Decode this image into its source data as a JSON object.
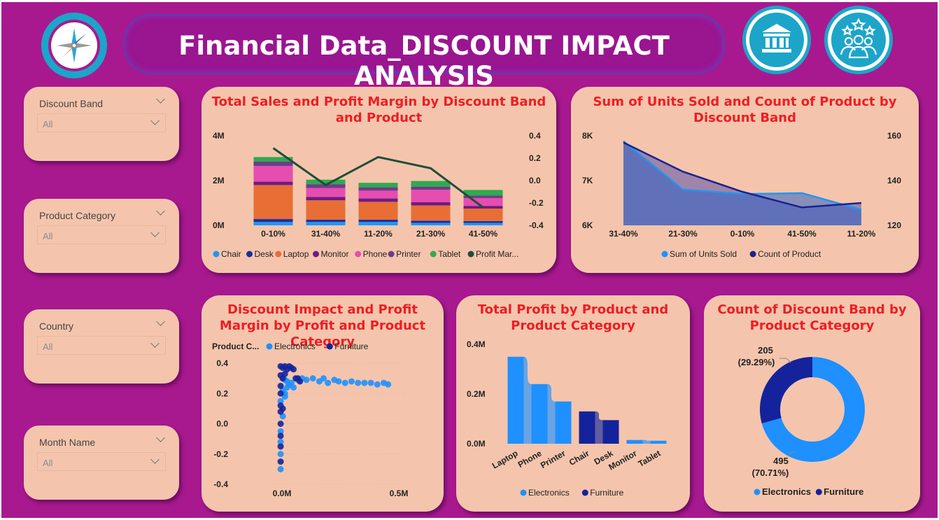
{
  "title": "Financial Data_DISCOUNT IMPACT ANALYSIS",
  "icons": {
    "logo": "compass-icon",
    "bank": "bank-icon",
    "team": "team-stars-icon"
  },
  "slicers": [
    {
      "label": "Discount Band",
      "value": "All"
    },
    {
      "label": "Product Category",
      "value": "All"
    },
    {
      "label": "Country",
      "value": "All"
    },
    {
      "label": "Month Name",
      "value": "All"
    }
  ],
  "colors": {
    "background": "#a8198f",
    "card": "#f4c5ac",
    "title_red": "#ee1d24",
    "chair": "#2196f3",
    "desk": "#1a2fa0",
    "laptop": "#e86e35",
    "monitor": "#6e1c7f",
    "phone": "#e64db0",
    "printer": "#6f3c8a",
    "tablet": "#2eab4f",
    "profit_margin": "#1d4e3a",
    "electronics": "#1e90ff",
    "furniture": "#14239c"
  },
  "chart_data": [
    {
      "type": "bar",
      "title": "Total Sales and Profit Margin by Discount Band and Product",
      "stacked": true,
      "categories": [
        "0-10%",
        "31-40%",
        "11-20%",
        "21-30%",
        "41-50%"
      ],
      "ylim": [
        0,
        4000000
      ],
      "y_ticks": [
        "0M",
        "2M",
        "4M"
      ],
      "y2lim": [
        -0.4,
        0.4
      ],
      "y2_ticks": [
        "-0.4",
        "-0.2",
        "0.0",
        "0.2",
        "0.4"
      ],
      "series": [
        {
          "name": "Chair",
          "values": [
            150000,
            150000,
            150000,
            110000,
            110000
          ]
        },
        {
          "name": "Desk",
          "values": [
            130000,
            100000,
            100000,
            100000,
            80000
          ]
        },
        {
          "name": "Laptop",
          "values": [
            1520000,
            870000,
            800000,
            680000,
            560000
          ]
        },
        {
          "name": "Monitor",
          "values": [
            150000,
            150000,
            150000,
            150000,
            120000
          ]
        },
        {
          "name": "Phone",
          "values": [
            700000,
            400000,
            350000,
            550000,
            350000
          ]
        },
        {
          "name": "Printer",
          "values": [
            200000,
            170000,
            150000,
            140000,
            110000
          ]
        },
        {
          "name": "Tablet",
          "values": [
            200000,
            200000,
            200000,
            250000,
            250000
          ]
        },
        {
          "name": "Profit Mar...",
          "axis": "secondary",
          "values": [
            0.29,
            -0.04,
            0.21,
            0.11,
            -0.24
          ]
        }
      ],
      "legend": [
        "Chair",
        "Desk",
        "Laptop",
        "Monitor",
        "Phone",
        "Printer",
        "Tablet",
        "Profit Mar..."
      ]
    },
    {
      "type": "area",
      "title": "Sum of Units Sold and Count of Product by Discount Band",
      "categories": [
        "31-40%",
        "21-30%",
        "0-10%",
        "41-50%",
        "11-20%"
      ],
      "ylim": [
        6000,
        8000
      ],
      "y_ticks": [
        "6K",
        "7K",
        "8K"
      ],
      "y2lim": [
        120,
        160
      ],
      "y2_ticks": [
        "120",
        "140",
        "160"
      ],
      "series": [
        {
          "name": "Sum of Units Sold",
          "values": [
            7880,
            6800,
            6700,
            6720,
            6350
          ]
        },
        {
          "name": "Count of Product",
          "axis": "secondary",
          "values": [
            157,
            144,
            135,
            128,
            130
          ]
        }
      ],
      "legend": [
        "Sum of Units Sold",
        "Count of Product"
      ]
    },
    {
      "type": "scatter",
      "title": "Discount Impact and Profit Margin by Profit and Product Category",
      "legend_title": "Product C...",
      "legend": [
        "Electronics",
        "Furniture"
      ],
      "xlim": [
        -0.01,
        0.55
      ],
      "x_ticks": [
        "0.0M",
        "0.5M"
      ],
      "ylim": [
        -0.4,
        0.4
      ],
      "y_ticks": [
        "-0.4",
        "-0.2",
        "0.0",
        "0.2",
        "0.4"
      ],
      "series": [
        {
          "name": "Electronics",
          "points": [
            [
              0.01,
              0.3
            ],
            [
              0.02,
              0.29
            ],
            [
              0.03,
              0.28
            ],
            [
              0.05,
              0.27
            ],
            [
              0.08,
              0.29
            ],
            [
              0.1,
              0.3
            ],
            [
              0.12,
              0.29
            ],
            [
              0.15,
              0.3
            ],
            [
              0.18,
              0.28
            ],
            [
              0.2,
              0.3
            ],
            [
              0.22,
              0.27
            ],
            [
              0.25,
              0.29
            ],
            [
              0.27,
              0.28
            ],
            [
              0.3,
              0.27
            ],
            [
              0.33,
              0.28
            ],
            [
              0.36,
              0.27
            ],
            [
              0.39,
              0.27
            ],
            [
              0.42,
              0.27
            ],
            [
              0.45,
              0.26
            ],
            [
              0.48,
              0.27
            ],
            [
              0.5,
              0.26
            ],
            [
              0.01,
              0.22
            ],
            [
              0.02,
              0.2
            ],
            [
              0.03,
              0.24
            ],
            [
              0.0,
              0.15
            ],
            [
              0.01,
              0.05
            ],
            [
              0.0,
              -0.05
            ],
            [
              0.0,
              -0.12
            ],
            [
              0.0,
              -0.2
            ],
            [
              0.0,
              -0.3
            ],
            [
              0.02,
              0.18
            ],
            [
              0.04,
              0.26
            ],
            [
              0.06,
              0.24
            ]
          ]
        },
        {
          "name": "Furniture",
          "points": [
            [
              0.0,
              0.38
            ],
            [
              0.01,
              0.37
            ],
            [
              0.02,
              0.38
            ],
            [
              0.03,
              0.36
            ],
            [
              0.04,
              0.38
            ],
            [
              0.05,
              0.37
            ],
            [
              0.06,
              0.36
            ],
            [
              0.07,
              0.3
            ],
            [
              0.08,
              0.3
            ],
            [
              0.09,
              0.28
            ],
            [
              0.0,
              0.32
            ],
            [
              0.0,
              0.25
            ],
            [
              0.0,
              0.2
            ],
            [
              0.0,
              0.12
            ],
            [
              0.0,
              0.08
            ],
            [
              0.0,
              0.0
            ],
            [
              0.0,
              -0.08
            ],
            [
              0.0,
              -0.15
            ],
            [
              0.0,
              -0.25
            ],
            [
              0.01,
              0.1
            ],
            [
              0.01,
              0.3
            ],
            [
              0.02,
              0.33
            ]
          ]
        }
      ]
    },
    {
      "type": "bar",
      "title": "Total Profit by Product and Product Category",
      "categories": [
        "Laptop",
        "Phone",
        "Printer",
        "Chair",
        "Desk",
        "Monitor",
        "Tablet"
      ],
      "ylim": [
        0,
        400000
      ],
      "y_ticks": [
        "0.0M",
        "0.2M",
        "0.4M"
      ],
      "series": [
        {
          "name": "Electronics",
          "values": [
            350000,
            240000,
            170000,
            0,
            0,
            15000,
            12000
          ]
        },
        {
          "name": "Furniture",
          "values": [
            0,
            0,
            0,
            130000,
            95000,
            0,
            0
          ]
        }
      ],
      "legend": [
        "Electronics",
        "Furniture"
      ]
    },
    {
      "type": "pie",
      "donut": true,
      "title": "Count of Discount Band by Product Category",
      "categories": [
        "Electronics",
        "Furniture"
      ],
      "values": [
        495,
        205
      ],
      "labels": [
        {
          "value": "495",
          "pct": "(70.71%)"
        },
        {
          "value": "205",
          "pct": "(29.29%)"
        }
      ],
      "legend": [
        "Electronics",
        "Furniture"
      ]
    }
  ]
}
